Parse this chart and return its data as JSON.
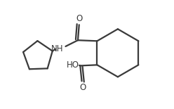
{
  "bg_color": "#ffffff",
  "line_color": "#3a3a3a",
  "line_width": 1.6,
  "text_color": "#3a3a3a",
  "font_size": 8.5,
  "xlim": [
    0,
    10
  ],
  "ylim": [
    0,
    7
  ],
  "figw": 2.48,
  "figh": 1.55,
  "dpi": 100
}
